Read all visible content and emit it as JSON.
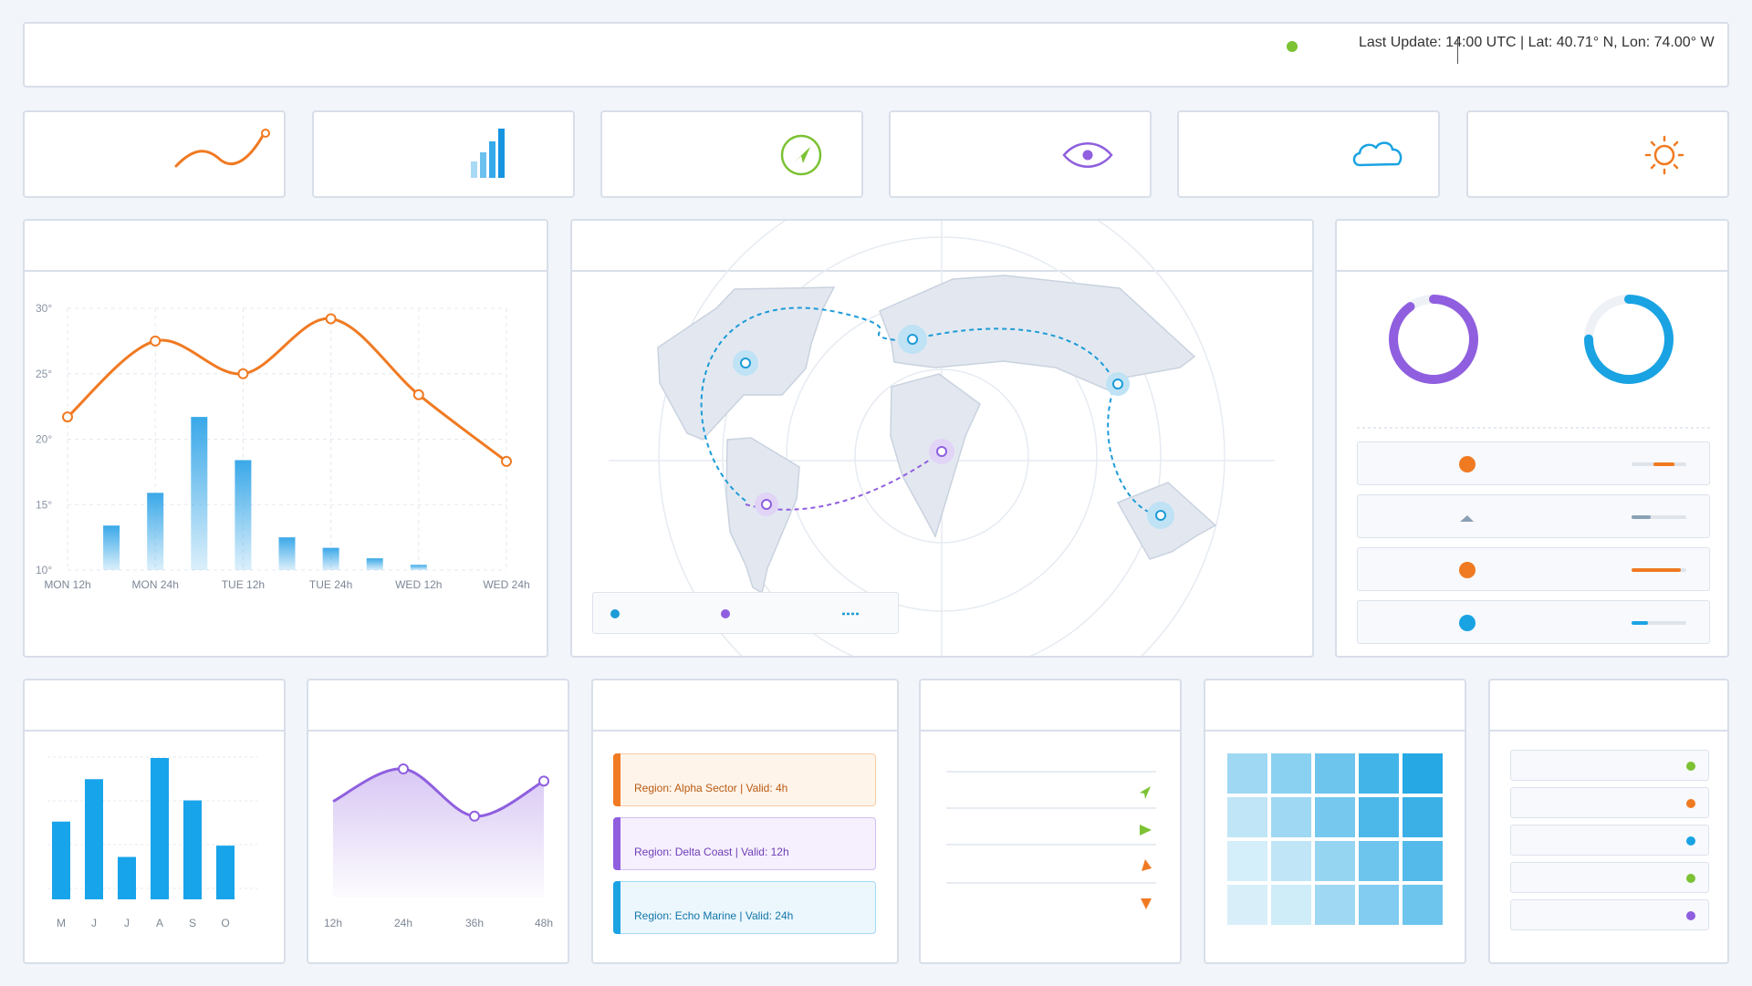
{
  "status": {
    "text": "Last Update: 14:00 UTC | Lat: 40.71° N, Lon: 74.00° W",
    "indicator_color": "#7cc233"
  },
  "summary_icons": [
    "trend-line-icon",
    "signal-bars-icon",
    "compass-icon",
    "eye-icon",
    "cloud-icon",
    "sun-icon"
  ],
  "main_chart": {
    "chart_data": {
      "type": "bar+line",
      "categories": [
        "MON 12h",
        "MON 24h",
        "TUE 12h",
        "TUE 24h",
        "WED 12h",
        "WED 24h"
      ],
      "y_ticks": [
        "30°",
        "25°",
        "20°",
        "15°",
        "10°"
      ],
      "ylim": [
        10,
        30
      ],
      "line_x": [
        0,
        1,
        2,
        3,
        4,
        5
      ],
      "line_values": [
        21.7,
        27.5,
        25.0,
        29.2,
        23.4,
        18.3
      ],
      "bar_x": [
        0.5,
        1.0,
        1.5,
        2.0,
        2.5,
        3.0,
        3.5,
        4.0
      ],
      "bar_values": [
        13.4,
        15.9,
        21.7,
        18.4,
        12.5,
        11.7,
        10.9,
        10.4
      ],
      "line_color": "#f07a22",
      "bar_color": "#3aa8e8"
    }
  },
  "map": {
    "legend_colors": [
      "#1d9bd7",
      "#8f5fdf",
      "#1d9bd7"
    ]
  },
  "gauges": {
    "values": [
      0.9,
      0.75
    ],
    "colors": [
      "#8f5fdf",
      "#1aa3e3"
    ],
    "rows": [
      {
        "icon": "orange-dot-icon",
        "color": "#f07a22",
        "level": 0.7
      },
      {
        "icon": "triangle-icon",
        "color": "#8aa0b5",
        "level": 0.35
      },
      {
        "icon": "orange-dot-icon",
        "color": "#f07a22",
        "level": 0.9
      },
      {
        "icon": "blue-dot-icon",
        "color": "#1aa3e3",
        "level": 0.3
      }
    ]
  },
  "monthly_chart": {
    "chart_data": {
      "type": "bar",
      "categories": [
        "M",
        "J",
        "J",
        "A",
        "S",
        "O"
      ],
      "values": [
        0.55,
        0.85,
        0.3,
        1.0,
        0.7,
        0.38
      ],
      "bar_color": "#18a4ea"
    }
  },
  "area_chart": {
    "chart_data": {
      "type": "area",
      "categories": [
        "12h",
        "24h",
        "36h",
        "48h"
      ],
      "values": [
        0.52,
        1.0,
        0.3,
        0.82
      ],
      "line_color": "#8f5fdf"
    }
  },
  "alerts": [
    {
      "text": "Region: Alpha Sector | Valid: 4h",
      "color": "#f07a22",
      "bg": "#fef4ea",
      "fg": "#b85a12"
    },
    {
      "text": "Region: Delta Coast | Valid: 12h",
      "color": "#8f5fdf",
      "bg": "#f6effd",
      "fg": "#6d3fb8"
    },
    {
      "text": "Region: Echo Marine | Valid: 24h",
      "color": "#1aa3e3",
      "bg": "#ecf7fd",
      "fg": "#1275a8"
    }
  ],
  "wind": {
    "arrows": [
      {
        "icon": "arrow-northeast-icon",
        "color": "#7cc233"
      },
      {
        "icon": "arrow-east-icon",
        "color": "#7cc233"
      },
      {
        "icon": "arrow-southwest-icon",
        "color": "#f07a22"
      },
      {
        "icon": "arrow-south-icon",
        "color": "#f07a22"
      }
    ]
  },
  "heatmap": {
    "levels": [
      [
        0.35,
        0.45,
        0.6,
        0.8,
        0.95
      ],
      [
        0.2,
        0.35,
        0.55,
        0.75,
        0.85
      ],
      [
        0.1,
        0.2,
        0.4,
        0.6,
        0.72
      ],
      [
        0.08,
        0.12,
        0.35,
        0.5,
        0.6
      ]
    ]
  },
  "station_list": {
    "dots": [
      "#7cc233",
      "#f07a22",
      "#1aa3e3",
      "#7cc233",
      "#8f5fdf"
    ]
  }
}
